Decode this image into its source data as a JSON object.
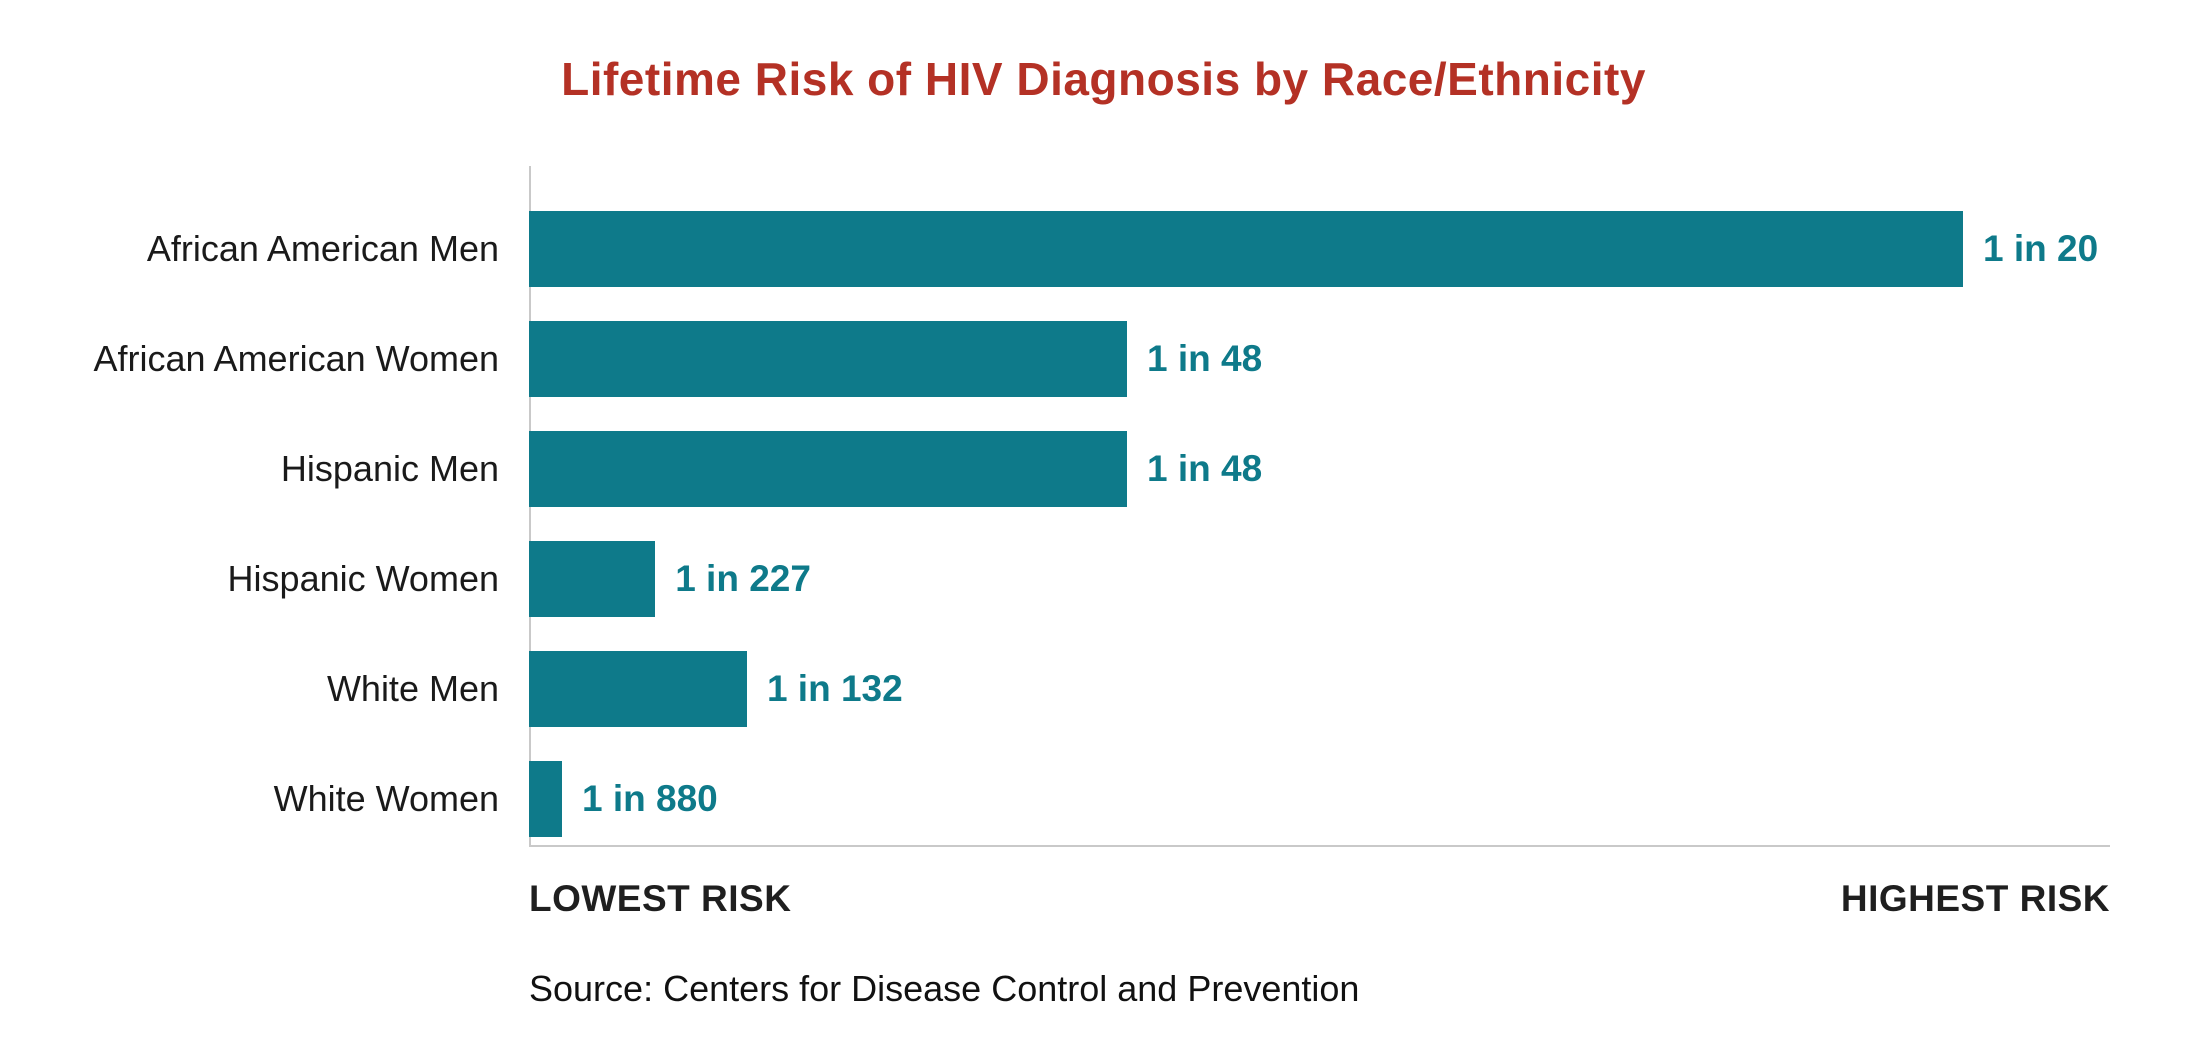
{
  "title": "Lifetime Risk of HIV Diagnosis by Race/Ethnicity",
  "source": "Source: Centers for Disease Control and Prevention",
  "axis": {
    "left_label": "LOWEST RISK",
    "right_label": "HIGHEST RISK"
  },
  "colors": {
    "bar": "#0e7a8a",
    "title": "#b43125",
    "value_label": "#0e7a8a",
    "axis_line": "#c9c9c9"
  },
  "chart_data": {
    "type": "bar",
    "orientation": "horizontal",
    "title": "Lifetime Risk of HIV Diagnosis by Race/Ethnicity",
    "categories": [
      "African American Men",
      "African American Women",
      "Hispanic Men",
      "Hispanic Women",
      "White Men",
      "White Women"
    ],
    "values": [
      0.05,
      0.02083,
      0.02083,
      0.00441,
      0.00758,
      0.00114
    ],
    "value_labels": [
      "1 in 20",
      "1 in 48",
      "1 in 48",
      "1 in 227",
      "1 in 132",
      "1 in 880"
    ],
    "risk_denominators": [
      20,
      48,
      48,
      227,
      132,
      880
    ],
    "xlabel_left": "LOWEST RISK",
    "xlabel_right": "HIGHEST RISK",
    "legend": "none",
    "grid": false,
    "rows": [
      {
        "label": "African American Men",
        "value_label": "1 in 20",
        "width_pct": 100
      },
      {
        "label": "African American Women",
        "value_label": "1 in 48",
        "width_pct": 41.7
      },
      {
        "label": "Hispanic Men",
        "value_label": "1 in 48",
        "width_pct": 41.7
      },
      {
        "label": "Hispanic Women",
        "value_label": "1 in 227",
        "width_pct": 8.8
      },
      {
        "label": "White Men",
        "value_label": "1 in 132",
        "width_pct": 15.2
      },
      {
        "label": "White Women",
        "value_label": "1 in 880",
        "width_pct": 2.3
      }
    ]
  }
}
